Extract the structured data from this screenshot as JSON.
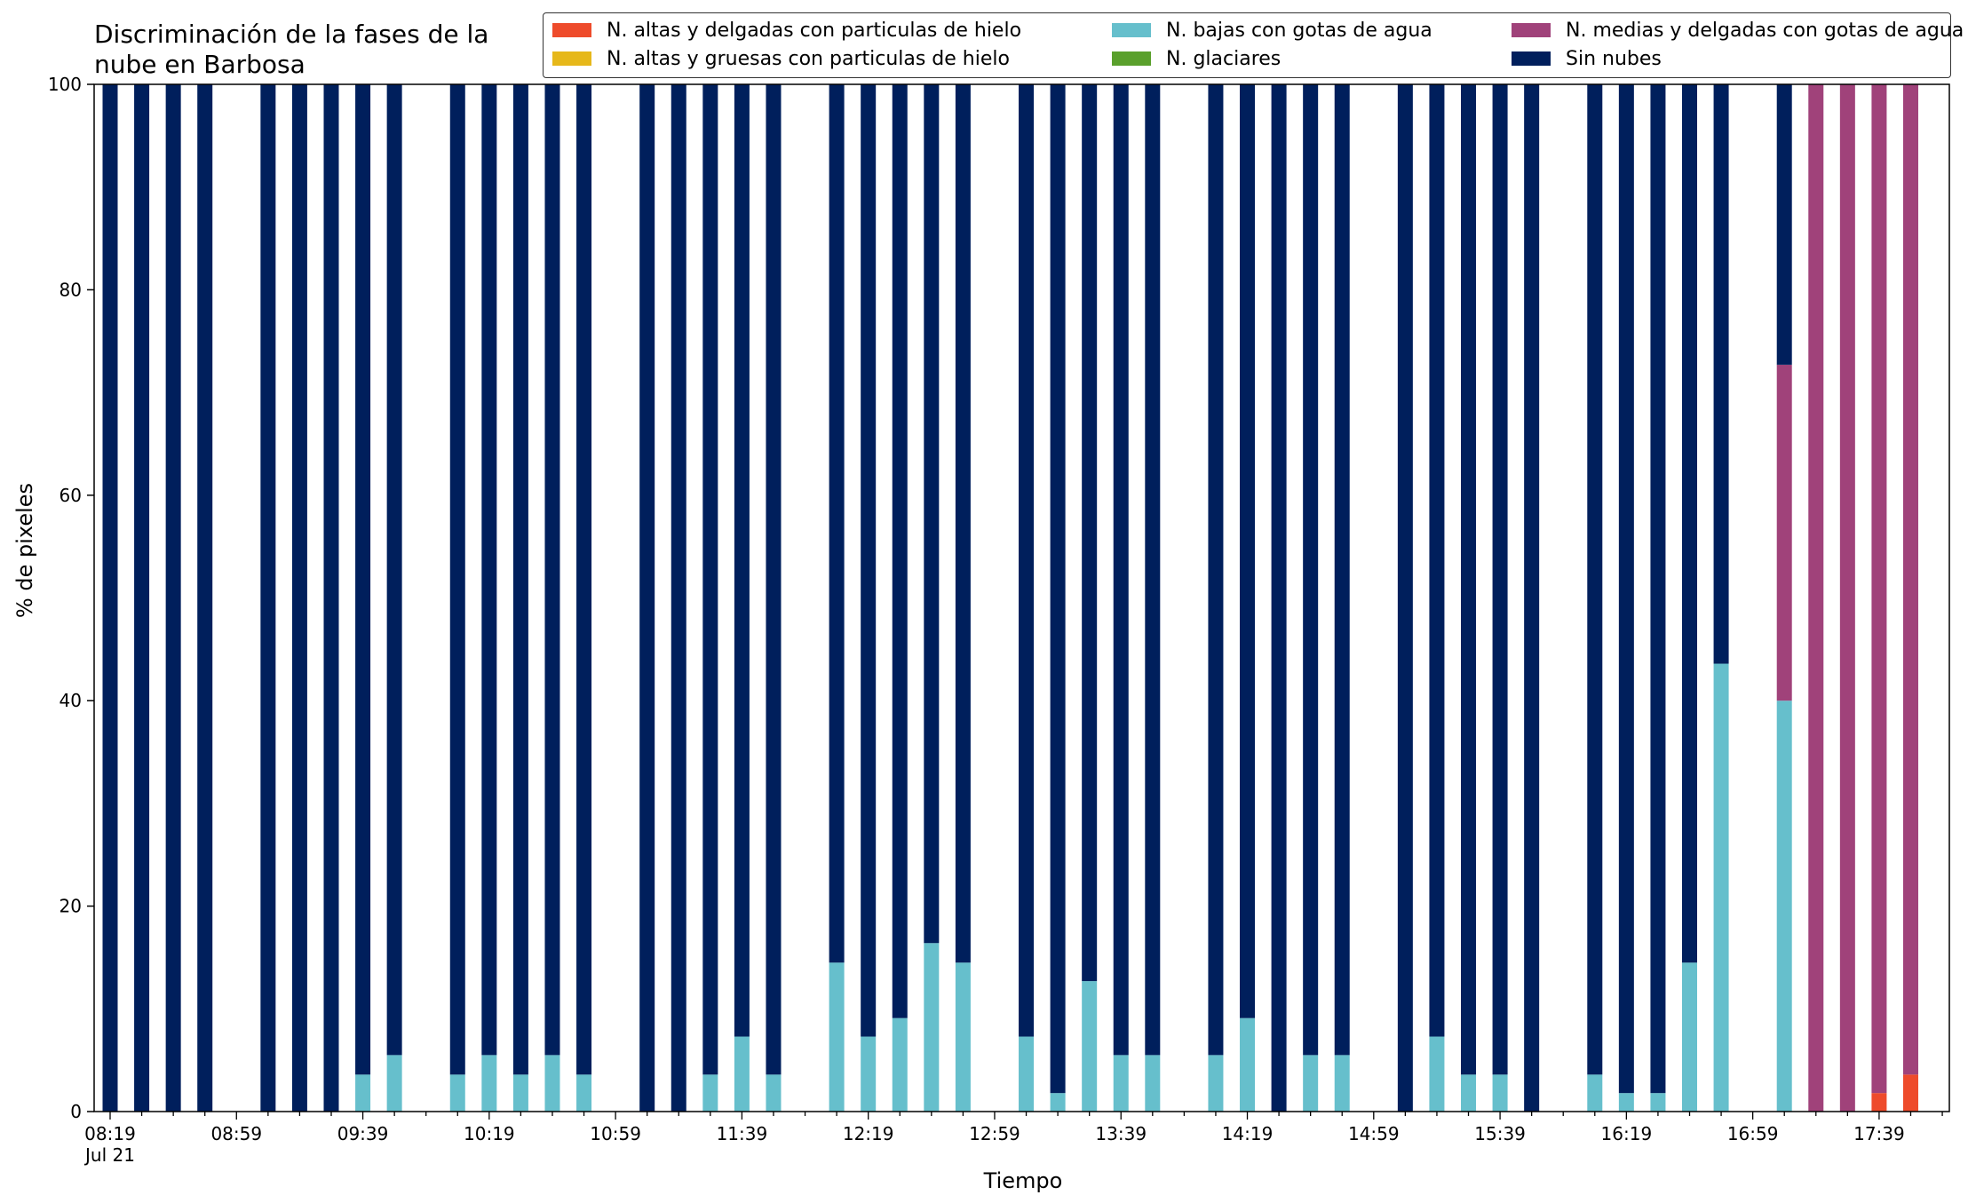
{
  "chart_data": {
    "type": "bar",
    "stacked": true,
    "title": [
      "Discriminación de la fases de la",
      "nube en Barbosa"
    ],
    "xlabel": "Tiempo",
    "ylabel": "% de pixeles",
    "ylim": [
      0,
      100
    ],
    "yticks": [
      "0",
      "20",
      "40",
      "60",
      "80",
      "100"
    ],
    "xticks": [
      "08:19",
      "08:59",
      "09:39",
      "10:19",
      "10:59",
      "11:39",
      "12:19",
      "12:59",
      "13:39",
      "14:19",
      "14:59",
      "15:39",
      "16:19",
      "16:59",
      "17:39"
    ],
    "xtick_sublabel": "Jul 21",
    "legend_position": "top-right",
    "categories": [
      "08:19",
      "08:29",
      "08:39",
      "08:49",
      "08:59",
      "09:09",
      "09:19",
      "09:29",
      "09:39",
      "09:49",
      "09:59",
      "10:09",
      "10:19",
      "10:29",
      "10:39",
      "10:49",
      "10:59",
      "11:09",
      "11:19",
      "11:29",
      "11:39",
      "11:49",
      "11:59",
      "12:09",
      "12:19",
      "12:29",
      "12:39",
      "12:49",
      "12:59",
      "13:09",
      "13:19",
      "13:29",
      "13:39",
      "13:49",
      "13:59",
      "14:09",
      "14:19",
      "14:29",
      "14:39",
      "14:49",
      "14:59",
      "15:09",
      "15:19",
      "15:29",
      "15:39",
      "15:49",
      "15:59",
      "16:09",
      "16:19",
      "16:29",
      "16:39",
      "16:49",
      "16:59",
      "17:09",
      "17:19",
      "17:29",
      "17:39",
      "17:49",
      "17:59"
    ],
    "series": [
      {
        "name": "N. altas y delgadas con particulas de hielo",
        "color": "#ee4b2b",
        "values": [
          0,
          0,
          0,
          0,
          null,
          0,
          0,
          0,
          0,
          0,
          null,
          0,
          0,
          0,
          0,
          0,
          null,
          0,
          0,
          0,
          0,
          0,
          null,
          0,
          0,
          0,
          0,
          0,
          null,
          0,
          0,
          0,
          0,
          0,
          null,
          0,
          0,
          0,
          0,
          0,
          null,
          0,
          0,
          0,
          0,
          0,
          null,
          0,
          0,
          0,
          0,
          0,
          null,
          0,
          0,
          0,
          1.8,
          3.6,
          null
        ]
      },
      {
        "name": "N. altas y gruesas con particulas de hielo",
        "color": "#e6b81a",
        "values": [
          0,
          0,
          0,
          0,
          null,
          0,
          0,
          0,
          0,
          0,
          null,
          0,
          0,
          0,
          0,
          0,
          null,
          0,
          0,
          0,
          0,
          0,
          null,
          0,
          0,
          0,
          0,
          0,
          null,
          0,
          0,
          0,
          0,
          0,
          null,
          0,
          0,
          0,
          0,
          0,
          null,
          0,
          0,
          0,
          0,
          0,
          null,
          0,
          0,
          0,
          0,
          0,
          null,
          0,
          0,
          0,
          0,
          0,
          null
        ]
      },
      {
        "name": "N. bajas con gotas de agua",
        "color": "#66bfcc",
        "values": [
          0,
          0,
          0,
          0,
          null,
          0,
          0,
          0,
          3.6,
          5.5,
          null,
          3.6,
          5.5,
          3.6,
          5.5,
          3.6,
          null,
          0,
          0,
          3.6,
          7.3,
          3.6,
          null,
          14.5,
          7.3,
          9.1,
          16.4,
          14.5,
          null,
          7.3,
          1.8,
          12.7,
          5.5,
          5.5,
          null,
          5.5,
          9.1,
          0,
          5.5,
          5.5,
          null,
          0,
          7.3,
          3.6,
          3.6,
          0,
          null,
          3.6,
          1.8,
          1.8,
          14.5,
          43.6,
          null,
          40.0,
          0,
          0,
          0,
          0,
          null
        ]
      },
      {
        "name": "N. glaciares",
        "color": "#5aa02c",
        "values": [
          0,
          0,
          0,
          0,
          null,
          0,
          0,
          0,
          0,
          0,
          null,
          0,
          0,
          0,
          0,
          0,
          null,
          0,
          0,
          0,
          0,
          0,
          null,
          0,
          0,
          0,
          0,
          0,
          null,
          0,
          0,
          0,
          0,
          0,
          null,
          0,
          0,
          0,
          0,
          0,
          null,
          0,
          0,
          0,
          0,
          0,
          null,
          0,
          0,
          0,
          0,
          0,
          null,
          0,
          0,
          0,
          0,
          0,
          null
        ]
      },
      {
        "name": "N. medias y delgadas con gotas de agua",
        "color": "#a0427a",
        "values": [
          0,
          0,
          0,
          0,
          null,
          0,
          0,
          0,
          0,
          0,
          null,
          0,
          0,
          0,
          0,
          0,
          null,
          0,
          0,
          0,
          0,
          0,
          null,
          0,
          0,
          0,
          0,
          0,
          null,
          0,
          0,
          0,
          0,
          0,
          null,
          0,
          0,
          0,
          0,
          0,
          null,
          0,
          0,
          0,
          0,
          0,
          null,
          0,
          0,
          0,
          0,
          0,
          null,
          32.7,
          100,
          100,
          98.2,
          96.4,
          null
        ]
      },
      {
        "name": "Sin nubes",
        "color": "#001f5c",
        "values": [
          100,
          100,
          100,
          100,
          null,
          100,
          100,
          100,
          96.4,
          94.5,
          null,
          96.4,
          94.5,
          96.4,
          94.5,
          96.4,
          null,
          100,
          100,
          96.4,
          92.7,
          96.4,
          null,
          85.5,
          92.7,
          90.9,
          83.6,
          85.5,
          null,
          92.7,
          98.2,
          87.3,
          94.5,
          94.5,
          null,
          94.5,
          90.9,
          100,
          94.5,
          94.5,
          null,
          100,
          92.7,
          96.4,
          96.4,
          100,
          null,
          96.4,
          98.2,
          98.2,
          85.5,
          56.4,
          null,
          27.3,
          0,
          0,
          0,
          0,
          null
        ]
      }
    ]
  }
}
